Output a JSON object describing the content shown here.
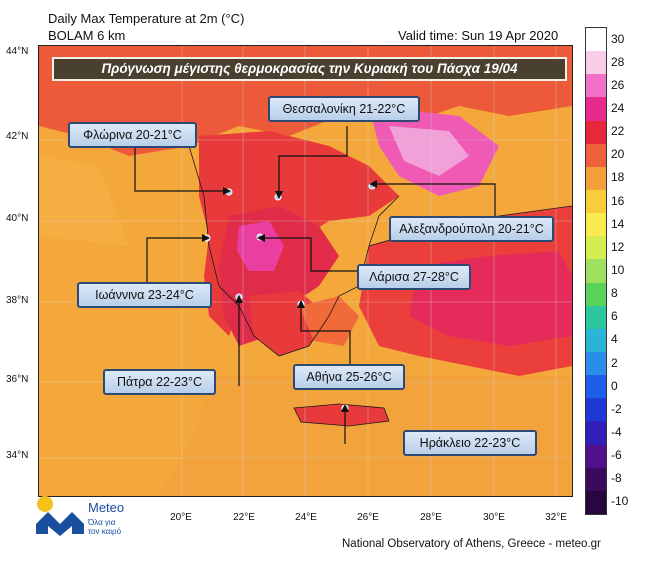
{
  "header": {
    "title_line1": "Daily Max Temperature at 2m (°C)",
    "title_line2": "BOLAM 6 km",
    "valid_time": "Valid time: Sun 19 Apr 2020"
  },
  "banner": "Πρόγνωση μέγιστης θερμοκρασίας την Κυριακή του Πάσχα 19/04",
  "cities": [
    {
      "id": "thessaloniki",
      "label": "Θεσσαλονίκη 21-22°C"
    },
    {
      "id": "florina",
      "label": "Φλώρινα 20-21°C"
    },
    {
      "id": "alexandroupoli",
      "label": "Αλεξανδρούπολη 20-21°C"
    },
    {
      "id": "larisa",
      "label": "Λάρισα 27-28°C"
    },
    {
      "id": "ioannina",
      "label": "Ιωάννινα 23-24°C"
    },
    {
      "id": "athina",
      "label": "Αθήνα 25-26°C"
    },
    {
      "id": "patra",
      "label": "Πάτρα 22-23°C"
    },
    {
      "id": "irakleio",
      "label": "Ηράκλειο 22-23°C"
    }
  ],
  "axes": {
    "lat_labels": [
      "44°N",
      "42°N",
      "40°N",
      "38°N",
      "36°N",
      "34°N"
    ],
    "lon_labels": [
      "20°E",
      "22°E",
      "24°E",
      "26°E",
      "28°E",
      "30°E",
      "32°E"
    ]
  },
  "legend": {
    "values": [
      "30",
      "28",
      "26",
      "24",
      "22",
      "20",
      "18",
      "16",
      "14",
      "12",
      "10",
      "8",
      "6",
      "4",
      "2",
      "0",
      "-2",
      "-4",
      "-6",
      "-8",
      "-10"
    ],
    "colors": [
      "#ffffff",
      "#f8cde9",
      "#f070c8",
      "#e52b8e",
      "#e8283a",
      "#f0603a",
      "#f5a03a",
      "#f8cc3a",
      "#f8ea50",
      "#d4ee50",
      "#a0e060",
      "#5ad25a",
      "#2ec6a0",
      "#2ab4d6",
      "#2a8ee8",
      "#1e5ee8",
      "#1e3ad4",
      "#3020b8",
      "#50108c",
      "#3c0a5c",
      "#280640"
    ]
  },
  "logo": {
    "name": "Meteo",
    "tagline_1": "Όλα για",
    "tagline_2": "τον καιρό"
  },
  "footer": "National Observatory of Athens, Greece - meteo.gr"
}
